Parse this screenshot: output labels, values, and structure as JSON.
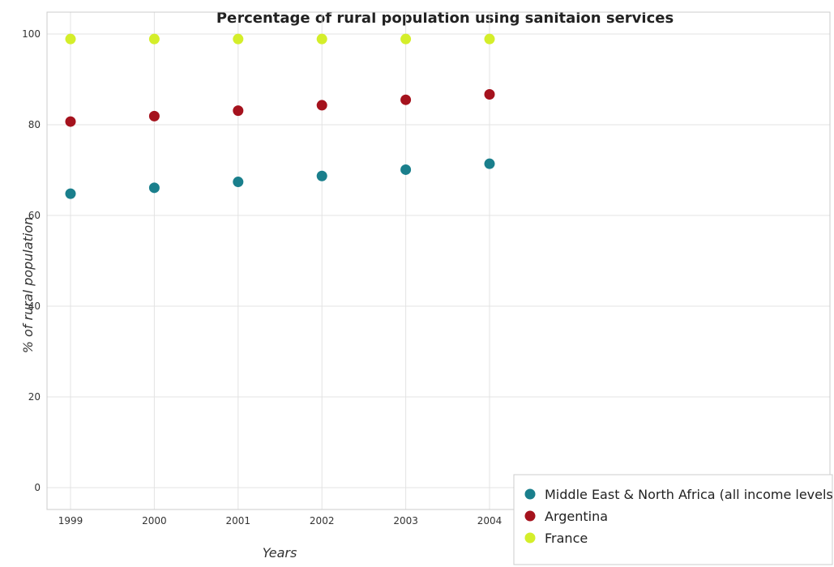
{
  "chart_data": {
    "type": "scatter",
    "title": "Percentage of rural population using sanitaion services",
    "xlabel": "Years",
    "ylabel": "% of rural population",
    "categories": [
      "1999",
      "2000",
      "2001",
      "2002",
      "2003",
      "2004"
    ],
    "ylim": [
      0,
      100
    ],
    "yticks": [
      "0",
      "20",
      "40",
      "60",
      "80",
      "100"
    ],
    "grid": true,
    "legend_position": "bottom-right",
    "series": [
      {
        "name": "Middle East & North Africa (all income levels)",
        "color": "#1a7f8c",
        "values": [
          64.8,
          66.1,
          67.4,
          68.7,
          70.1,
          71.4
        ]
      },
      {
        "name": "Argentina",
        "color": "#a5121d",
        "values": [
          80.7,
          81.9,
          83.1,
          84.3,
          85.5,
          86.7
        ]
      },
      {
        "name": "France",
        "color": "#d4ee2a",
        "values": [
          98.9,
          98.9,
          98.9,
          98.9,
          98.9,
          98.9
        ]
      }
    ]
  }
}
